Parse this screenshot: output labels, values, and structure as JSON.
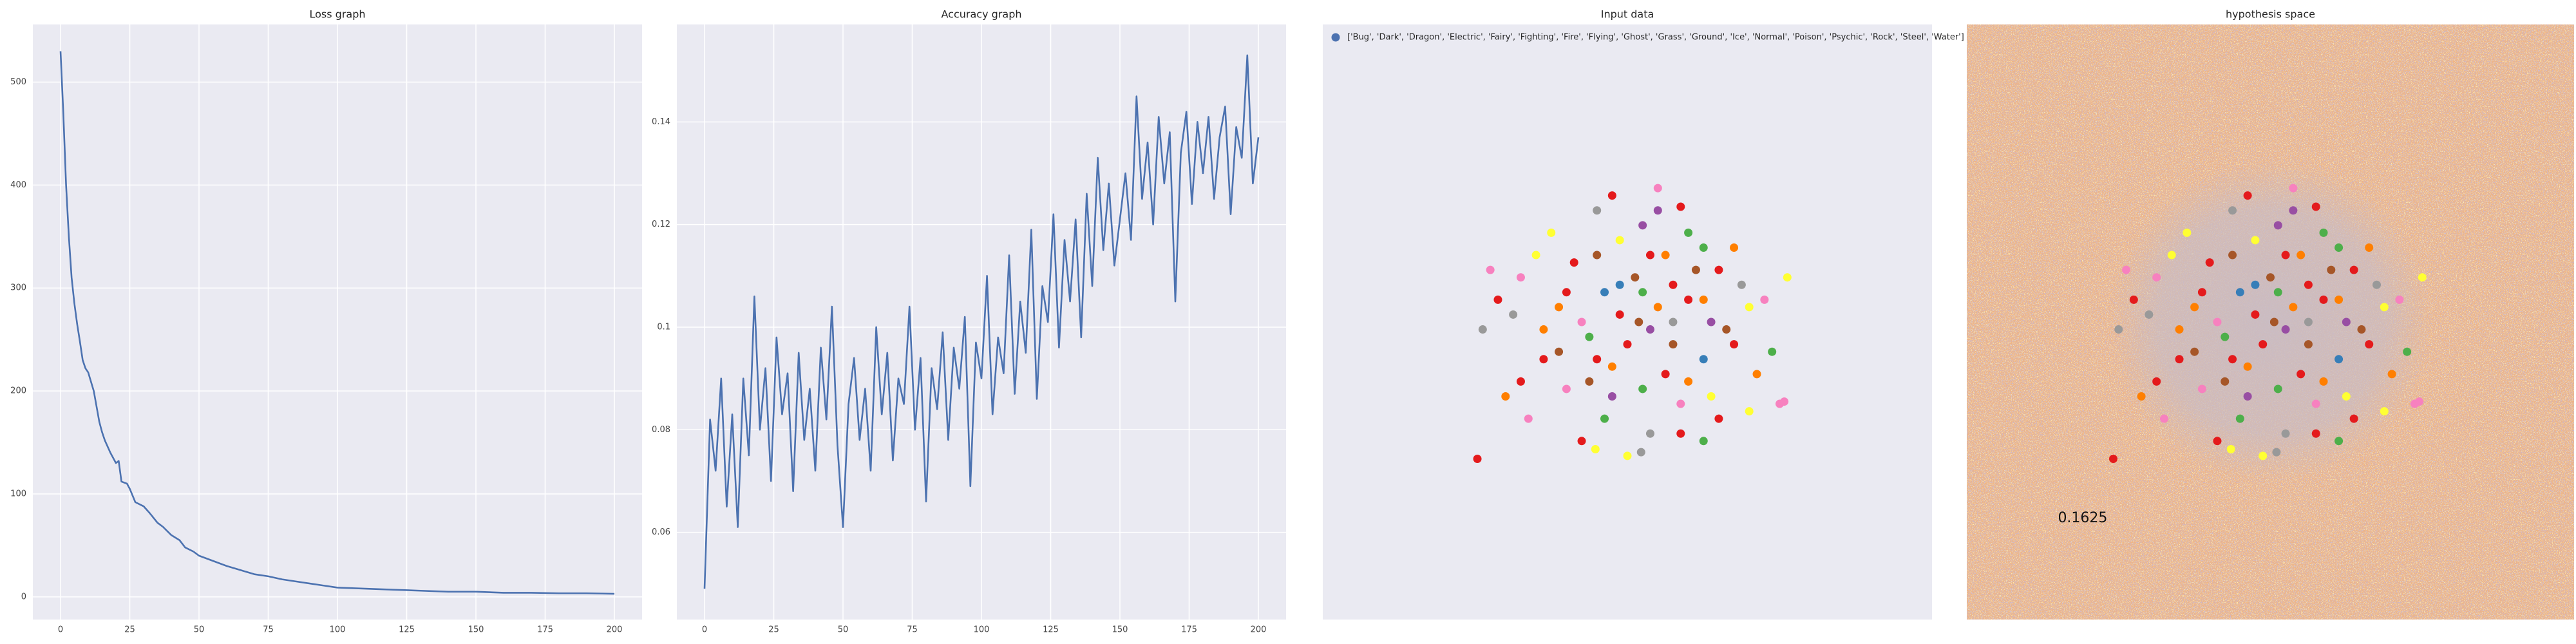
{
  "chart_data": [
    {
      "type": "line",
      "title": "Loss graph",
      "x": [
        0,
        1,
        2,
        3,
        4,
        5,
        6,
        7,
        8,
        9,
        10,
        12,
        14,
        15,
        16,
        18,
        20,
        21,
        22,
        24,
        25,
        27,
        30,
        32,
        35,
        37,
        40,
        43,
        45,
        48,
        50,
        55,
        60,
        65,
        70,
        75,
        80,
        85,
        90,
        95,
        100,
        110,
        120,
        130,
        140,
        150,
        160,
        170,
        180,
        190,
        200
      ],
      "values": [
        530,
        470,
        400,
        350,
        310,
        285,
        265,
        248,
        230,
        222,
        218,
        200,
        170,
        160,
        152,
        140,
        130,
        132,
        112,
        110,
        105,
        92,
        88,
        82,
        72,
        68,
        60,
        55,
        48,
        44,
        40,
        35,
        30,
        26,
        22,
        20,
        17,
        15,
        13,
        11,
        9,
        8,
        7,
        6,
        5,
        5,
        4,
        4,
        3.5,
        3.5,
        3
      ],
      "color": "#4c72b0",
      "xlim": [
        -10,
        210
      ],
      "ylim": [
        -22,
        556
      ],
      "xticks": [
        0,
        25,
        50,
        75,
        100,
        125,
        150,
        175,
        200
      ],
      "yticks": [
        0,
        100,
        200,
        300,
        400,
        500
      ],
      "grid": true
    },
    {
      "type": "line",
      "title": "Accuracy graph",
      "x": [
        0,
        2,
        4,
        6,
        8,
        10,
        12,
        14,
        16,
        18,
        20,
        22,
        24,
        26,
        28,
        30,
        32,
        34,
        36,
        38,
        40,
        42,
        44,
        46,
        48,
        50,
        52,
        54,
        56,
        58,
        60,
        62,
        64,
        66,
        68,
        70,
        72,
        74,
        76,
        78,
        80,
        82,
        84,
        86,
        88,
        90,
        92,
        94,
        96,
        98,
        100,
        102,
        104,
        106,
        108,
        110,
        112,
        114,
        116,
        118,
        120,
        122,
        124,
        126,
        128,
        130,
        132,
        134,
        136,
        138,
        140,
        142,
        144,
        146,
        148,
        150,
        152,
        154,
        156,
        158,
        160,
        162,
        164,
        166,
        168,
        170,
        172,
        174,
        176,
        178,
        180,
        182,
        184,
        186,
        188,
        190,
        192,
        194,
        196,
        198,
        200
      ],
      "values": [
        0.049,
        0.082,
        0.072,
        0.09,
        0.065,
        0.083,
        0.061,
        0.09,
        0.075,
        0.106,
        0.08,
        0.092,
        0.07,
        0.098,
        0.083,
        0.091,
        0.068,
        0.095,
        0.078,
        0.088,
        0.072,
        0.096,
        0.082,
        0.104,
        0.077,
        0.061,
        0.085,
        0.094,
        0.078,
        0.088,
        0.072,
        0.1,
        0.083,
        0.095,
        0.074,
        0.09,
        0.085,
        0.104,
        0.08,
        0.094,
        0.066,
        0.092,
        0.084,
        0.099,
        0.078,
        0.096,
        0.088,
        0.102,
        0.069,
        0.097,
        0.09,
        0.11,
        0.083,
        0.098,
        0.091,
        0.114,
        0.087,
        0.105,
        0.095,
        0.119,
        0.086,
        0.108,
        0.101,
        0.122,
        0.096,
        0.117,
        0.105,
        0.121,
        0.098,
        0.126,
        0.108,
        0.133,
        0.115,
        0.128,
        0.112,
        0.121,
        0.13,
        0.117,
        0.145,
        0.125,
        0.136,
        0.12,
        0.141,
        0.128,
        0.138,
        0.105,
        0.134,
        0.142,
        0.124,
        0.14,
        0.13,
        0.141,
        0.125,
        0.137,
        0.143,
        0.122,
        0.139,
        0.133,
        0.153,
        0.128,
        0.137
      ],
      "color": "#4c72b0",
      "xlim": [
        -10,
        210
      ],
      "ylim": [
        0.043,
        0.159
      ],
      "xticks": [
        0,
        25,
        50,
        75,
        100,
        125,
        150,
        175,
        200
      ],
      "yticks": [
        0.06,
        0.08,
        0.1,
        0.12,
        0.14
      ],
      "grid": true
    },
    {
      "type": "scatter",
      "title": "Input data",
      "xlim": [
        -4.1,
        3.9
      ],
      "ylim": [
        -4,
        4
      ],
      "grid": false,
      "legend": "upper left",
      "x": [
        -2.07,
        0.3,
        0.6,
        -0.5,
        0.1,
        -0.2,
        0.9,
        1.1,
        -1.3,
        -1.5,
        -1.9,
        -0.8,
        0.4,
        0.0,
        -0.4,
        0.7,
        1.4,
        1.5,
        -1.0,
        -1.6,
        -2.0,
        -0.2,
        0.2,
        0.5,
        0.9,
        1.3,
        1.6,
        -0.6,
        -1.2,
        -0.9,
        -0.3,
        0.1,
        0.6,
        1.0,
        1.9,
        -1.7,
        -1.4,
        -0.4,
        0.2,
        0.9,
        -0.1,
        -0.7,
        0.5,
        -0.5,
        0.3,
        -0.1,
        0.8,
        -0.9,
        1.2,
        -0.6,
        0.4,
        -1.1,
        0.7,
        1.3,
        -0.3,
        0.2,
        0.05,
        -0.7,
        1.0,
        0.6,
        -1.2,
        1.7,
        1.8,
        2.0,
        1.96,
        -0.52,
        0.08,
        -1.5,
        1.1,
        0.3,
        -0.2,
        0.5,
        -1.0,
        -0.3,
        0.9,
        1.5,
        -1.8,
        0.1,
        -0.5,
        0.7
      ],
      "series": [
        {
          "name": "['Bug', 'Dark', 'Dragon', 'Electric', 'Fairy', 'Fighting', 'Fire', 'Flying', 'Ghost', 'Grass', 'Ground', 'Ice', 'Normal', 'Poison', 'Psychic', 'Rock', 'Steel', 'Water']",
          "color": "#4c72b0",
          "values": [
            -1.84,
            1.8,
            1.55,
            1.5,
            1.3,
            1.1,
            1.0,
            0.7,
            0.9,
            0.6,
            0.7,
            0.8,
            0.9,
            0.6,
            0.4,
            0.3,
            0.5,
            0.2,
            0.2,
            0.1,
            -0.1,
            0.1,
            -0.1,
            -0.3,
            -0.5,
            -0.3,
            -0.7,
            -0.2,
            -0.5,
            -0.9,
            -0.6,
            -0.9,
            -1.1,
            -1.0,
            -1.1,
            -1.0,
            -1.3,
            -1.3,
            -1.5,
            -1.6,
            -1.8,
            -1.6,
            0.5,
            0.9,
            0.2,
            -0.3,
            0.7,
            0.4,
            -0.1,
            -0.8,
            -0.7,
            1.2,
            1.2,
            1.0,
            1.7,
            0.9,
            0.0,
            0.0,
            0.0,
            -1.5,
            -0.1,
            0.3,
            -0.4,
            0.6,
            -1.07,
            -1.71,
            -1.75,
            -0.8,
            -1.3,
            1.5,
            0.5,
            0.0,
            -0.4,
            -1.0,
            0.3,
            -1.2,
            0.3,
            0.4,
            -0.5,
            -0.8
          ],
          "colors": [
            "#e41a1c",
            "#f781bf",
            "#e41a1c",
            "#999999",
            "#984ea3",
            "#ffff33",
            "#4daf4a",
            "#e41a1c",
            "#ffff33",
            "#f781bf",
            "#f781bf",
            "#e41a1c",
            "#ff7f00",
            "#a65628",
            "#377eb8",
            "#e41a1c",
            "#999999",
            "#ffff33",
            "#ff7f00",
            "#999999",
            "#999999",
            "#e41a1c",
            "#984ea3",
            "#a65628",
            "#377eb8",
            "#e41a1c",
            "#ff7f00",
            "#4daf4a",
            "#e41a1c",
            "#f781bf",
            "#ff7f00",
            "#4daf4a",
            "#f781bf",
            "#ffff33",
            "#f781bf",
            "#ff7f00",
            "#f781bf",
            "#4daf4a",
            "#999999",
            "#4daf4a",
            "#ffff33",
            "#e41a1c",
            "#e41a1c",
            "#a65628",
            "#ff7f00",
            "#e41a1c",
            "#a65628",
            "#e41a1c",
            "#a65628",
            "#a65628",
            "#e41a1c",
            "#ffff33",
            "#4daf4a",
            "#ff7f00",
            "#e41a1c",
            "#e41a1c",
            "#a65628",
            "#f781bf",
            "#984ea3",
            "#e41a1c",
            "#ff7f00",
            "#f781bf",
            "#4daf4a",
            "#ffff33",
            "#f781bf",
            "#ffff33",
            "#999999",
            "#e41a1c",
            "#e41a1c",
            "#984ea3",
            "#377eb8",
            "#999999",
            "#a65628",
            "#984ea3",
            "#ff7f00",
            "#ffff33",
            "#e41a1c",
            "#4daf4a",
            "#e41a1c",
            "#ff7f00"
          ]
        }
      ]
    },
    {
      "type": "decision",
      "title": "hypothesis space",
      "xlim": [
        -4,
        4
      ],
      "ylim": [
        -4,
        4
      ],
      "annotation": "0.1625"
    }
  ]
}
